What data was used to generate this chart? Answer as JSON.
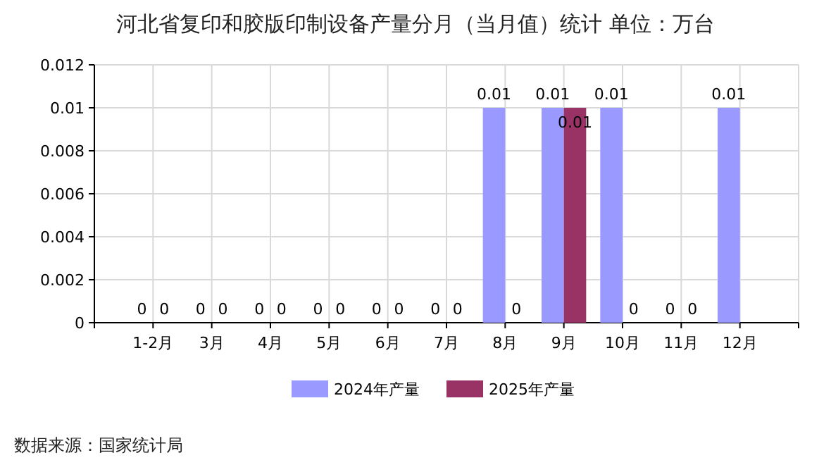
{
  "chart_data": {
    "type": "bar",
    "title": "河北省复印和胶版印制设备产量分月（当月值）统计  单位：万台",
    "categories": [
      "1-2月",
      "3月",
      "4月",
      "5月",
      "6月",
      "7月",
      "8月",
      "9月",
      "10月",
      "11月",
      "12月"
    ],
    "series": [
      {
        "name": "2024年产量",
        "color": "#9999ff",
        "values": [
          0,
          0,
          0,
          0,
          0,
          0,
          0.01,
          0.01,
          0.01,
          0,
          0.01
        ]
      },
      {
        "name": "2025年产量",
        "color": "#993366",
        "values": [
          0,
          0,
          0,
          0,
          0,
          0,
          0,
          0.01,
          0,
          0,
          null
        ]
      }
    ],
    "ylim": [
      0,
      0.012
    ],
    "yticks": [
      0,
      0.002,
      0.004,
      0.006,
      0.008,
      0.01,
      0.012
    ],
    "grid": true,
    "legend": "bottom",
    "data_labels": true,
    "annotations": [
      "数据来源：国家统计局"
    ]
  }
}
